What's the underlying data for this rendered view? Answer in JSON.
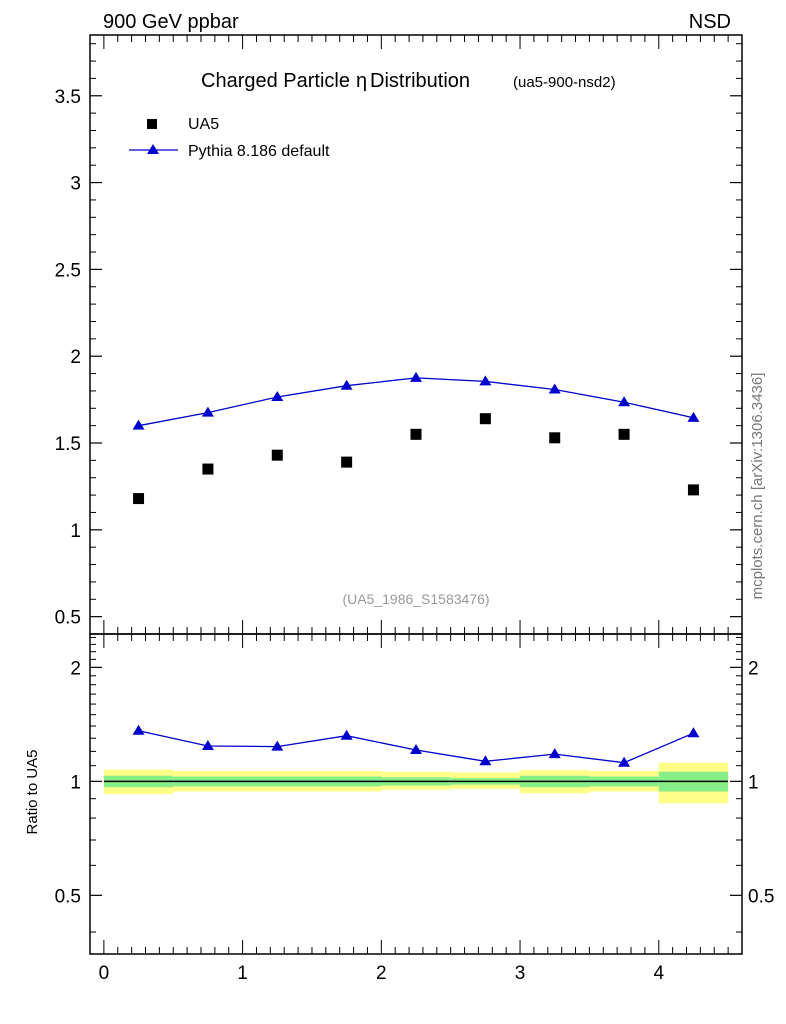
{
  "header": {
    "left": "900 GeV ppbar",
    "right": "NSD"
  },
  "side_label": "mcplots.cern.ch [arXiv:1306.3436]",
  "chart_data": {
    "type": "scatter",
    "title": "Charged Particle",
    "title_symbol": "η",
    "title_suffix": "Distribution",
    "title_tag": "(ua5-900-nsd2)",
    "analysis_label": "(UA5_1986_S1583476)",
    "colors": {
      "data": "#000000",
      "mc": "#0000cc",
      "band_inner": "#88ee88",
      "band_outer": "#ffff88"
    },
    "main": {
      "xlim": [
        -0.1,
        4.6
      ],
      "ylim": [
        0.4,
        3.85
      ],
      "yticks": [
        0.5,
        1,
        1.5,
        2,
        2.5,
        3,
        3.5
      ],
      "ytick_labels": [
        "0.5",
        "1",
        "1.5",
        "2",
        "2.5",
        "3",
        "3.5"
      ]
    },
    "series": [
      {
        "name": "UA5",
        "marker": "square",
        "x": [
          0.25,
          0.75,
          1.25,
          1.75,
          2.25,
          2.75,
          3.25,
          3.75,
          4.25
        ],
        "y": [
          1.18,
          1.35,
          1.43,
          1.39,
          1.55,
          1.64,
          1.53,
          1.55,
          1.23
        ]
      },
      {
        "name": "Pythia 8.186 default",
        "marker": "triangle",
        "x": [
          0.25,
          0.75,
          1.25,
          1.75,
          2.25,
          2.75,
          3.25,
          3.75,
          4.25
        ],
        "y": [
          1.6,
          1.675,
          1.765,
          1.83,
          1.875,
          1.855,
          1.808,
          1.735,
          1.645
        ]
      }
    ],
    "ratio": {
      "ylabel": "Ratio to UA5",
      "ylim": [
        0.35,
        2.45
      ],
      "yticks": [
        0.5,
        1,
        2
      ],
      "ytick_labels": [
        "0.5",
        "1",
        "2"
      ],
      "x": [
        0.25,
        0.75,
        1.25,
        1.75,
        2.25,
        2.75,
        3.25,
        3.75,
        4.25
      ],
      "values": [
        1.36,
        1.24,
        1.235,
        1.32,
        1.21,
        1.13,
        1.18,
        1.12,
        1.34
      ],
      "bins": [
        {
          "lo": 0.0,
          "hi": 0.5,
          "inner": [
            0.965,
            1.035
          ],
          "outer": [
            0.925,
            1.075
          ]
        },
        {
          "lo": 0.5,
          "hi": 1.0,
          "inner": [
            0.97,
            1.03
          ],
          "outer": [
            0.94,
            1.065
          ]
        },
        {
          "lo": 1.0,
          "hi": 1.5,
          "inner": [
            0.97,
            1.03
          ],
          "outer": [
            0.94,
            1.065
          ]
        },
        {
          "lo": 1.5,
          "hi": 2.0,
          "inner": [
            0.97,
            1.03
          ],
          "outer": [
            0.94,
            1.065
          ]
        },
        {
          "lo": 2.0,
          "hi": 2.5,
          "inner": [
            0.975,
            1.025
          ],
          "outer": [
            0.95,
            1.06
          ]
        },
        {
          "lo": 2.5,
          "hi": 3.0,
          "inner": [
            0.98,
            1.02
          ],
          "outer": [
            0.955,
            1.055
          ]
        },
        {
          "lo": 3.0,
          "hi": 3.5,
          "inner": [
            0.965,
            1.035
          ],
          "outer": [
            0.93,
            1.07
          ]
        },
        {
          "lo": 3.5,
          "hi": 4.0,
          "inner": [
            0.97,
            1.03
          ],
          "outer": [
            0.94,
            1.065
          ]
        },
        {
          "lo": 4.0,
          "hi": 4.5,
          "inner": [
            0.94,
            1.06
          ],
          "outer": [
            0.875,
            1.12
          ]
        }
      ]
    },
    "xticks": [
      0,
      1,
      2,
      3,
      4
    ],
    "xtick_labels": [
      "0",
      "1",
      "2",
      "3",
      "4"
    ]
  }
}
